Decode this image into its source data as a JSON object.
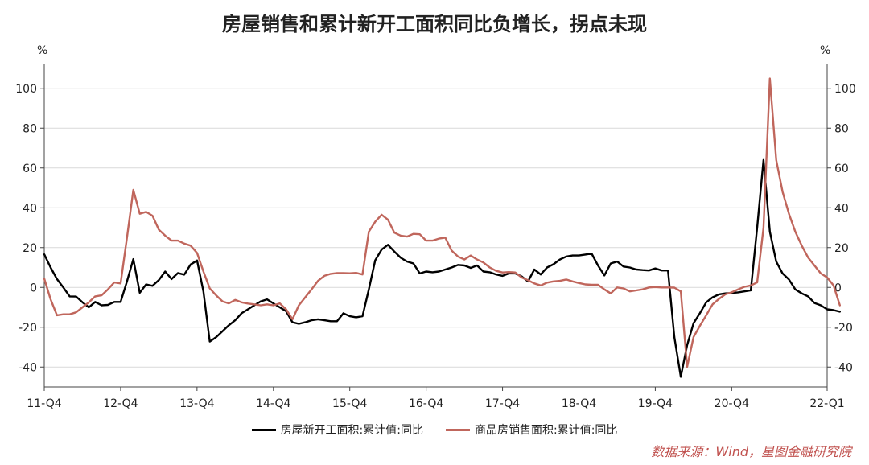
{
  "title": "房屋销售和累计新开工面积同比负增长，拐点未现",
  "source": "数据来源：Wind，星图金融研究院",
  "chart_data": {
    "type": "line",
    "y_unit_left": "%",
    "y_unit_right": "%",
    "ylim": [
      -50,
      110
    ],
    "yticks": [
      -40,
      -20,
      0,
      20,
      40,
      60,
      80,
      100
    ],
    "xlim": [
      0,
      123
    ],
    "xticks": [
      {
        "pos": 0,
        "label": "11-Q4"
      },
      {
        "pos": 12,
        "label": "12-Q4"
      },
      {
        "pos": 24,
        "label": "13-Q4"
      },
      {
        "pos": 36,
        "label": "14-Q4"
      },
      {
        "pos": 48,
        "label": "15-Q4"
      },
      {
        "pos": 60,
        "label": "16-Q4"
      },
      {
        "pos": 72,
        "label": "17-Q4"
      },
      {
        "pos": 84,
        "label": "18-Q4"
      },
      {
        "pos": 96,
        "label": "19-Q4"
      },
      {
        "pos": 108,
        "label": "20-Q4"
      },
      {
        "pos": 123,
        "label": "22-Q1"
      }
    ],
    "grid": true,
    "legend_position": "bottom-center",
    "series": [
      {
        "name": "房屋新开工面积:累计值:同比",
        "color": "#000000",
        "values": [
          16.6,
          10,
          4.2,
          0,
          -4.5,
          -4.6,
          -7.5,
          -10,
          -7.3,
          -9,
          -8.8,
          -7.3,
          -7.3,
          3,
          14.2,
          -2.7,
          1.5,
          0.8,
          3.7,
          8,
          4.2,
          7.2,
          6.4,
          11.5,
          13.5,
          -2,
          -27.2,
          -25,
          -22,
          -19,
          -16.5,
          -13,
          -11,
          -9,
          -7,
          -6,
          -8,
          -10,
          -12,
          -17.5,
          -18.3,
          -17.5,
          -16.5,
          -16,
          -16.5,
          -17,
          -17,
          -13,
          -14.5,
          -15,
          -14.5,
          -1,
          13.6,
          19,
          21.4,
          18,
          14.9,
          13,
          12,
          7,
          8,
          7.6,
          8,
          9,
          10,
          11.3,
          11,
          9.8,
          11,
          8,
          7.6,
          6.5,
          5.8,
          7,
          7,
          5.5,
          3,
          9,
          6.5,
          10,
          11.6,
          14,
          15.5,
          16,
          16,
          16.5,
          17,
          11,
          6,
          12,
          13,
          10.5,
          10,
          9,
          8.7,
          8.5,
          9.5,
          8.5,
          8.5,
          -25,
          -44.9,
          -29,
          -18,
          -13,
          -7.5,
          -5,
          -3.5,
          -3,
          -2.8,
          -2.5,
          -2,
          -1.5,
          30,
          64,
          28,
          13,
          7,
          4,
          -1,
          -3,
          -4.5,
          -7.8,
          -9,
          -11,
          -11.4,
          -12.2
        ]
      },
      {
        "name": "商品房销售面积:累计值:同比",
        "color": "#c0665c",
        "values": [
          4.4,
          -6,
          -14,
          -13.5,
          -13.5,
          -12.5,
          -10,
          -7.5,
          -4.5,
          -4,
          -1,
          2.5,
          2,
          25,
          49,
          37,
          37.9,
          36,
          29,
          26,
          23.5,
          23.5,
          22,
          21,
          17.3,
          8,
          -0.5,
          -4,
          -7,
          -8,
          -6.3,
          -7.5,
          -8.1,
          -8.5,
          -9,
          -8.5,
          -9,
          -8,
          -11,
          -16,
          -9,
          -5,
          -1,
          3.3,
          5.8,
          6.8,
          7.2,
          7.2,
          7.1,
          7.3,
          6.5,
          28,
          33,
          36.5,
          34,
          27.5,
          26,
          25.5,
          26.9,
          26.7,
          23.5,
          23.5,
          24.5,
          25,
          18.5,
          15.5,
          14,
          16,
          14,
          12.5,
          10,
          8.3,
          7.5,
          7.7,
          7.5,
          5,
          3.6,
          2,
          1,
          2.4,
          3,
          3.3,
          4,
          3,
          2.2,
          1.5,
          1.3,
          1.3,
          -1,
          -3,
          0,
          -0.5,
          -2,
          -1.5,
          -1,
          0,
          0.2,
          0,
          0,
          -0.1,
          -2,
          -39.9,
          -25,
          -19.3,
          -14,
          -8.5,
          -5.8,
          -3.5,
          -2.5,
          -1,
          0.3,
          1,
          2.5,
          30,
          104.9,
          64,
          48,
          37,
          28,
          21,
          15,
          11,
          7,
          5,
          1,
          -9
        ]
      }
    ]
  }
}
